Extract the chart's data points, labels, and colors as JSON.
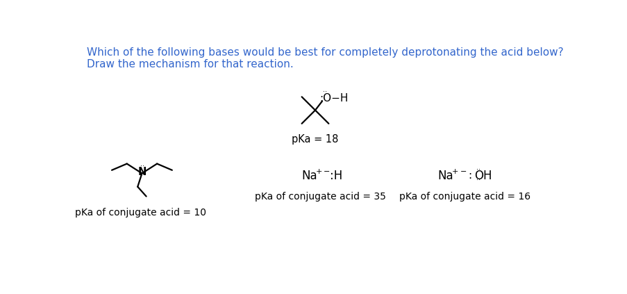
{
  "title_line1": "Which of the following bases would be best for completely deprotonating the acid below?",
  "title_line2": "Draw the mechanism for that reaction.",
  "title_color": "#3366cc",
  "background_color": "#ffffff",
  "acid_pka_label": "pKa = 18",
  "base1_pka_label": "pKa of conjugate acid = 10",
  "base2_pka_label": "pKa of conjugate acid = 35",
  "base3_pka_label": "pKa of conjugate acid = 16"
}
